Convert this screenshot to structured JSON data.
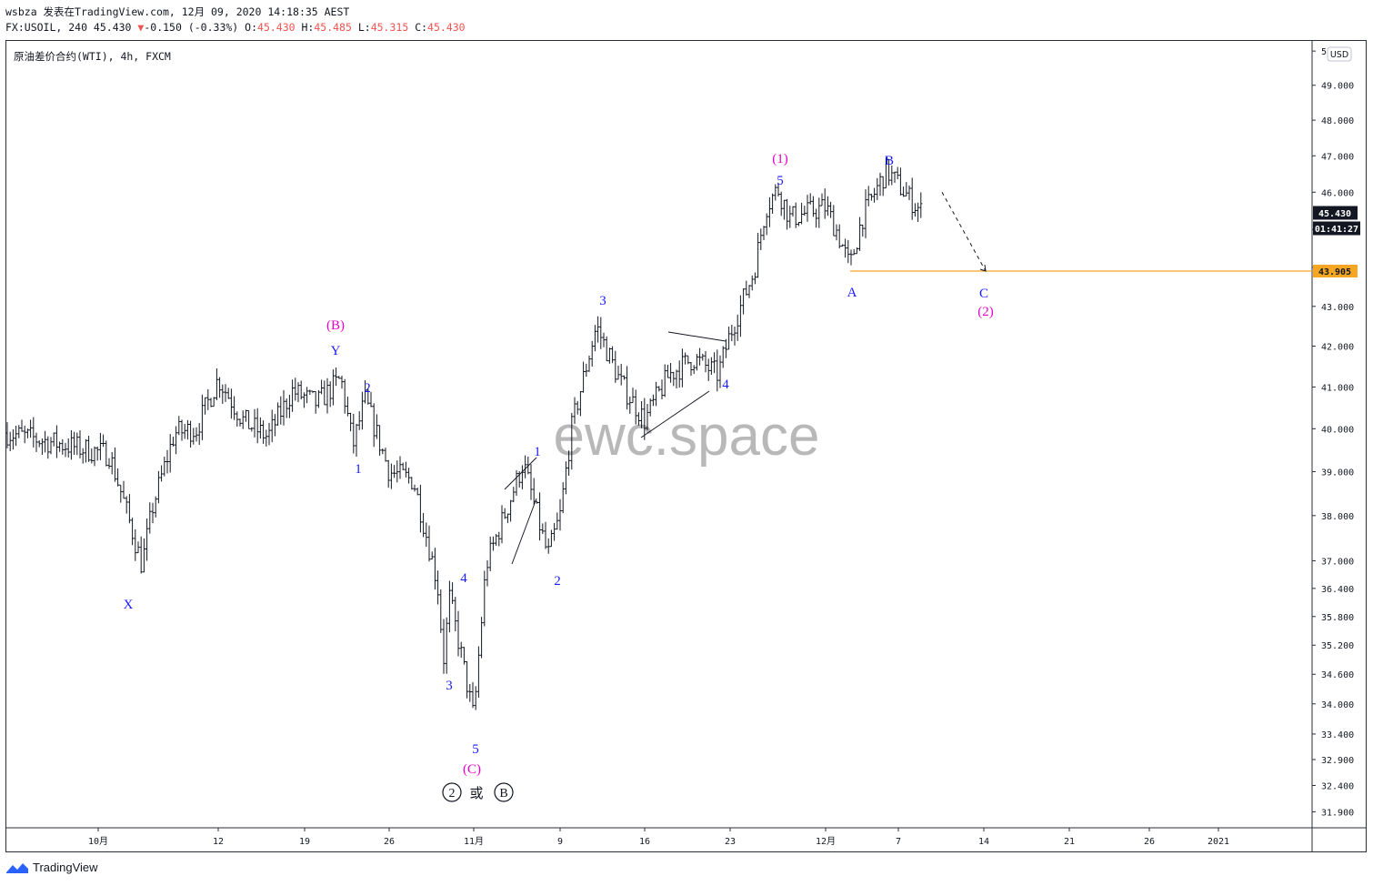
{
  "header": {
    "line1": "wsbza 发表在TradingView.com, 12月 09, 2020 14:18:35 AEST",
    "symbol_line": "FX:USOIL, 240 45.430",
    "change": "-0.150 (-0.33%)",
    "o_label": "O:",
    "o_value": "45.430",
    "h_label": "H:",
    "h_value": "45.485",
    "l_label": "L:",
    "l_value": "45.315",
    "c_label": "C:",
    "c_value": "45.430",
    "instrument": "原油差价合约(WTI), 4h, FXCM"
  },
  "watermark": "ewc.space",
  "footer": {
    "brand": "TradingView"
  },
  "colors": {
    "blue": "#1a1aff",
    "magenta": "#e600c8",
    "orange": "#f5a623",
    "dark": "#131722",
    "grid": "#e0e3eb"
  },
  "chart_data": {
    "type": "candlestick",
    "y_scale": "log",
    "currency_label": "USD",
    "ylim": [
      31.6,
      50.3
    ],
    "y_ticks": [
      "50",
      "49.000",
      "48.000",
      "47.000",
      "46.000",
      "45.000",
      "44.000",
      "43.000",
      "42.000",
      "41.000",
      "40.000",
      "39.000",
      "38.000",
      "37.000",
      "36.400",
      "35.800",
      "35.200",
      "34.600",
      "34.000",
      "33.400",
      "32.900",
      "32.400",
      "31.900"
    ],
    "y_tick_values": [
      50,
      49,
      48,
      47,
      46,
      45,
      44,
      43,
      42,
      41,
      40,
      39,
      38,
      37,
      36.4,
      35.8,
      35.2,
      34.6,
      34.0,
      33.4,
      32.9,
      32.4,
      31.9
    ],
    "x_ticks": [
      "10月",
      "12",
      "19",
      "26",
      "11月",
      "9",
      "16",
      "23",
      "12月",
      "7",
      "14",
      "21",
      "26",
      "2021"
    ],
    "last_price": "45.430",
    "countdown": "01:41:27",
    "horizontal_level": {
      "value": 43.905,
      "label": "43.905"
    },
    "price_path": [
      [
        "2020-10-01",
        39.9
      ],
      [
        "2020-10-02",
        39.4
      ],
      [
        "2020-10-03",
        38.6
      ],
      [
        "2020-10-05",
        36.9
      ],
      [
        "2020-10-06",
        38.2
      ],
      [
        "2020-10-08",
        39.9
      ],
      [
        "2020-10-10",
        40.0
      ],
      [
        "2020-10-12",
        41.2
      ],
      [
        "2020-10-14",
        40.2
      ],
      [
        "2020-10-16",
        39.8
      ],
      [
        "2020-10-18",
        40.9
      ],
      [
        "2020-10-20",
        40.6
      ],
      [
        "2020-10-22",
        41.2
      ],
      [
        "2020-10-23",
        39.6
      ],
      [
        "2020-10-24",
        40.7
      ],
      [
        "2020-10-26",
        39.0
      ],
      [
        "2020-10-28",
        38.8
      ],
      [
        "2020-10-30",
        36.5
      ],
      [
        "2020-10-30T12:00",
        34.9
      ],
      [
        "2020-10-31",
        36.2
      ],
      [
        "2020-11-02",
        33.7
      ],
      [
        "2020-11-03",
        36.9
      ],
      [
        "2020-11-05",
        38.4
      ],
      [
        "2020-11-06",
        39.2
      ],
      [
        "2020-11-08",
        37.1
      ],
      [
        "2020-11-09",
        38.0
      ],
      [
        "2020-11-10",
        40.1
      ],
      [
        "2020-11-12",
        42.5
      ],
      [
        "2020-11-14",
        41.1
      ],
      [
        "2020-11-16",
        40.2
      ],
      [
        "2020-11-18",
        41.3
      ],
      [
        "2020-11-20",
        41.7
      ],
      [
        "2020-11-22",
        41.3
      ],
      [
        "2020-11-23",
        42.3
      ],
      [
        "2020-11-25",
        43.9
      ],
      [
        "2020-11-26",
        45.6
      ],
      [
        "2020-11-27",
        46.1
      ],
      [
        "2020-11-28",
        45.3
      ],
      [
        "2020-12-01",
        45.6
      ],
      [
        "2020-12-02",
        44.9
      ],
      [
        "2020-12-03",
        44.0
      ],
      [
        "2020-12-04",
        45.3
      ],
      [
        "2020-12-06",
        46.6
      ],
      [
        "2020-12-08",
        45.8
      ],
      [
        "2020-12-09",
        45.43
      ]
    ],
    "projection": {
      "from": [
        "2020-12-10",
        46.0
      ],
      "to": [
        "2020-12-14",
        43.905
      ]
    },
    "wave_labels": {
      "X": "X",
      "B_paren": "(B)",
      "Y": "Y",
      "one_a": "1",
      "two_a": "2",
      "three_a": "3",
      "four_a": "4",
      "five_a": "5",
      "C_paren": "(C)",
      "one_b": "1",
      "two_b": "2",
      "three_b": "3",
      "four_b": "4",
      "five_b": "5",
      "one_paren": "(1)",
      "A": "A",
      "B": "B",
      "C": "C",
      "two_paren": "(2)",
      "circled_two": "2",
      "huo": "或",
      "circled_B": "B"
    }
  }
}
